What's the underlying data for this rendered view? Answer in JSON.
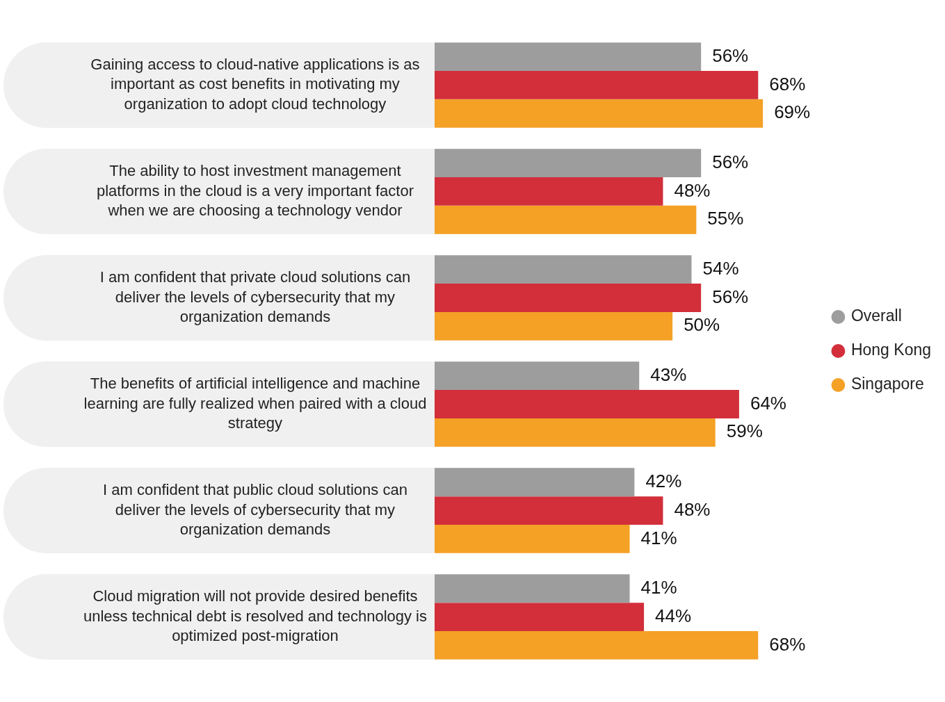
{
  "chart_data": {
    "type": "bar",
    "orientation": "horizontal",
    "grid": false,
    "legend": "right",
    "categories": [
      "Gaining access to cloud-native applications is as important as cost benefits in motivating my organization to adopt cloud technology",
      "The ability to host investment management platforms in the cloud is a very important factor when we are choosing a technology vendor",
      "I am confident that private cloud solutions can deliver the levels of cybersecurity that my organization demands",
      "The benefits of artificial intelligence and machine learning are fully realized when paired with a cloud strategy",
      "I am confident that public cloud solutions can deliver the levels of cybersecurity that my organization demands",
      "Cloud migration will not provide desired benefits unless technical debt is resolved and technology is optimized post-migration"
    ],
    "series": [
      {
        "name": "Overall",
        "color": "#9d9d9d",
        "values": [
          56,
          56,
          54,
          43,
          42,
          41
        ],
        "value_labels": [
          "56%",
          "56%",
          "54%",
          "43%",
          "42%",
          "41%"
        ]
      },
      {
        "name": "Hong Kong",
        "color": "#d22f3b",
        "values": [
          68,
          48,
          56,
          64,
          48,
          44
        ],
        "value_labels": [
          "68%",
          "48%",
          "56%",
          "64%",
          "48%",
          "44%"
        ]
      },
      {
        "name": "Singapore",
        "color": "#f4a126",
        "values": [
          69,
          55,
          50,
          59,
          41,
          68
        ],
        "value_labels": [
          "69%",
          "55%",
          "50%",
          "59%",
          "41%",
          "68%"
        ]
      }
    ]
  }
}
